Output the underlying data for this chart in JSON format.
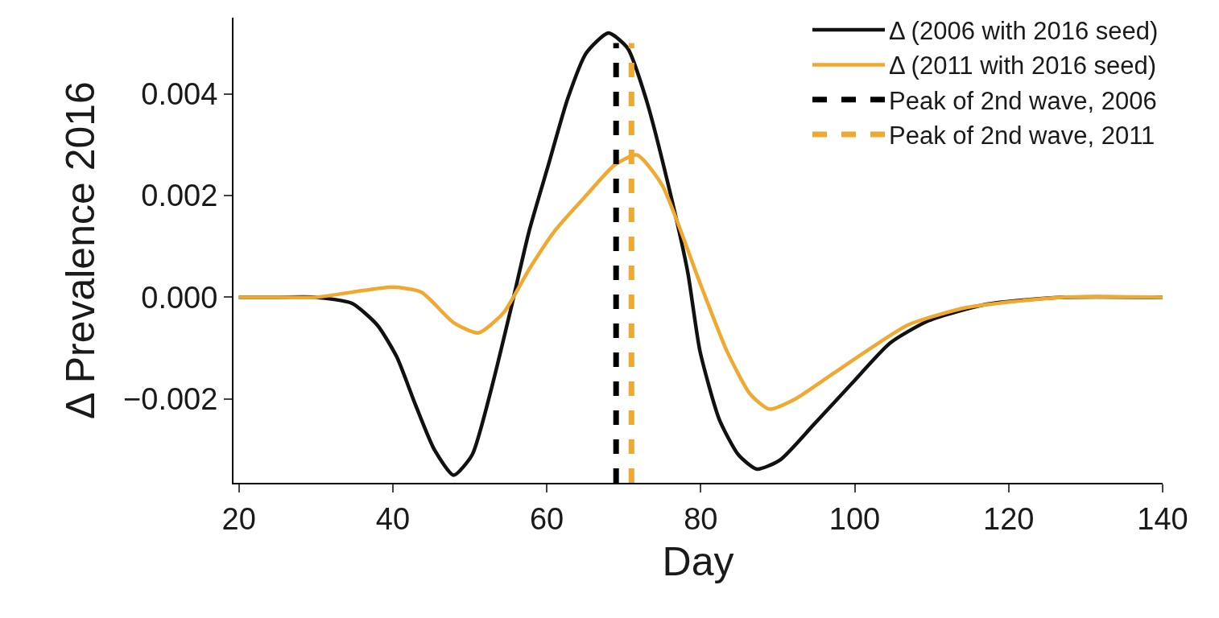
{
  "chart_data": {
    "type": "line",
    "xlabel": "Day",
    "ylabel": "Δ Prevalence 2016",
    "xlim": [
      19.3,
      140
    ],
    "xticks": [
      20,
      40,
      60,
      80,
      100,
      120,
      140
    ],
    "ylim": [
      -0.00365,
      0.0055
    ],
    "yticks": [
      {
        "value": -0.002,
        "label": "−0.002"
      },
      {
        "value": 0,
        "label": "0.000"
      },
      0.002,
      0.004
    ],
    "legend": "top right",
    "marker": "none",
    "series": [
      {
        "name": "Δ (2006 with 2016 seed)",
        "color": "#111111",
        "line_style": "solid",
        "x": [
          20,
          25,
          30,
          34.7,
          38,
          40.5,
          42.9,
          45.4,
          47.9,
          50.3,
          52.8,
          55.3,
          57.7,
          60.2,
          62.7,
          65.1,
          68,
          70.5,
          72.9,
          75.8,
          78.3,
          79.9,
          82.4,
          84.9,
          87.3,
          90.3,
          94.7,
          99.6,
          104.6,
          109.6,
          117,
          126.9,
          140
        ],
        "values": [
          0,
          0,
          0,
          -0.00012,
          -0.00055,
          -0.00117,
          -0.0021,
          -0.003,
          -0.0035,
          -0.0031,
          -0.0018,
          -0.00025,
          0.0013,
          0.0026,
          0.0039,
          0.0048,
          0.0052,
          0.0049,
          0.0039,
          0.0022,
          0.0005,
          -0.00106,
          -0.0024,
          -0.0031,
          -0.00338,
          -0.0032,
          -0.0025,
          -0.0017,
          -0.0009,
          -0.00046,
          -0.00014,
          0,
          0
        ]
      },
      {
        "name": "Δ (2011 with 2016 seed)",
        "color": "#f0a830",
        "line_style": "solid",
        "x": [
          20,
          25,
          30,
          34.7,
          40,
          43.7,
          47.9,
          51.1,
          54.4,
          57.7,
          61,
          65.1,
          68.8,
          71.7,
          75,
          79.9,
          83.4,
          86.4,
          88.9,
          92.3,
          97.2,
          102.1,
          107,
          114.6,
          127,
          140
        ],
        "values": [
          0,
          0,
          0,
          0.0001,
          0.0002,
          0.0001,
          -0.0005,
          -0.0007,
          -0.0003,
          0.00055,
          0.0013,
          0.002,
          0.0026,
          0.0028,
          0.0022,
          0.00028,
          -0.00106,
          -0.0019,
          -0.0022,
          -0.002,
          -0.0015,
          -0.001,
          -0.00054,
          -0.0002,
          0,
          0
        ]
      },
      {
        "name": "Peak of 2nd wave, 2006",
        "color": "#000000",
        "line_style": "dashed",
        "x": [
          69,
          69
        ],
        "values": [
          -0.00365,
          0.005
        ]
      },
      {
        "name": "Peak of 2nd wave, 2011",
        "color": "#f0a830",
        "line_style": "dashed",
        "x": [
          71,
          71
        ],
        "values": [
          -0.00365,
          0.005
        ]
      }
    ]
  }
}
